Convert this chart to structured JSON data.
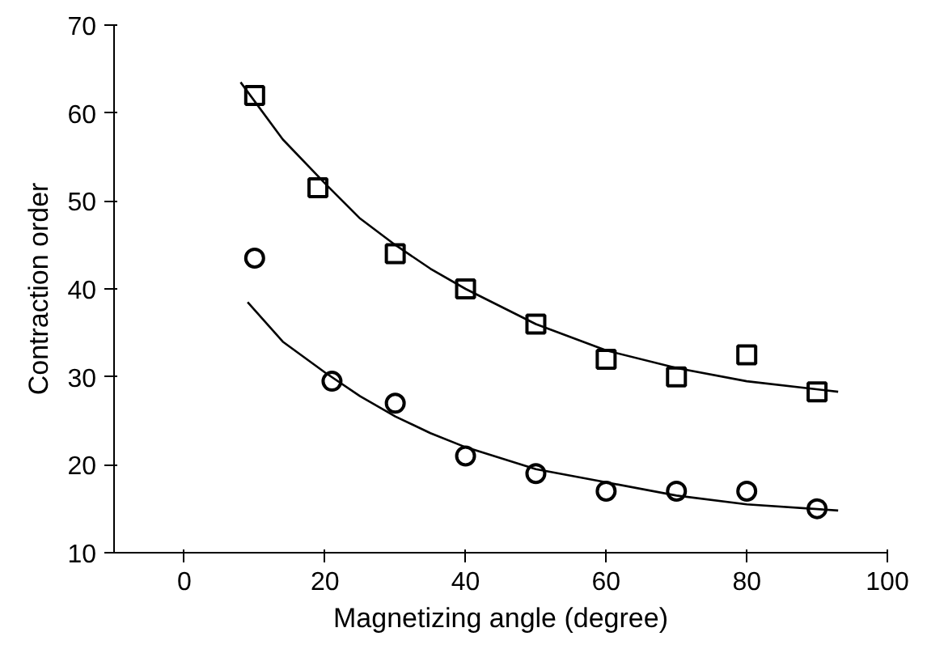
{
  "chart_data": {
    "type": "scatter",
    "xlabel": "Magnetizing angle (degree)",
    "ylabel": "Contraction order",
    "xlim": [
      -10,
      100
    ],
    "ylim": [
      10,
      70
    ],
    "xticks": [
      0,
      20,
      40,
      60,
      80,
      100
    ],
    "yticks": [
      10,
      20,
      30,
      40,
      50,
      60,
      70
    ],
    "grid": false,
    "series": [
      {
        "marker": "square",
        "color": "#000000",
        "x": [
          10,
          19,
          30,
          40,
          50,
          60,
          70,
          80,
          90
        ],
        "values": [
          62,
          51.5,
          44,
          40,
          36,
          32,
          30,
          32.5,
          28.3
        ]
      },
      {
        "marker": "circle",
        "color": "#000000",
        "x": [
          10,
          21,
          30,
          40,
          50,
          60,
          70,
          80,
          90
        ],
        "values": [
          43.5,
          29.5,
          27,
          21,
          19,
          17,
          17,
          17,
          15
        ]
      },
      {
        "type": "line",
        "color": "#000000",
        "x": [
          8,
          14,
          20,
          25,
          30,
          35,
          40,
          50,
          60,
          70,
          80,
          93
        ],
        "values": [
          63.5,
          57,
          52,
          48,
          45,
          42.3,
          40,
          36,
          33,
          31,
          29.5,
          28.3
        ]
      },
      {
        "type": "line",
        "color": "#000000",
        "x": [
          9,
          14,
          20,
          25,
          30,
          35,
          40,
          50,
          60,
          70,
          80,
          93
        ],
        "values": [
          38.5,
          34,
          30.5,
          27.8,
          25.5,
          23.6,
          22,
          19.5,
          18,
          16.5,
          15.5,
          14.8
        ]
      }
    ]
  }
}
